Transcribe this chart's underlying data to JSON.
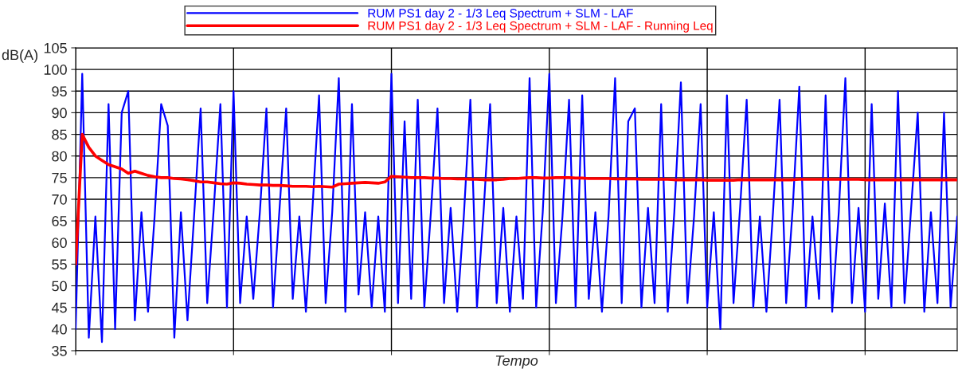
{
  "chart_data": {
    "type": "line",
    "xlabel": "Tempo",
    "ylabel": "dB(A)",
    "categories": [
      null,
      null,
      null,
      null,
      null,
      null,
      null,
      null,
      null,
      null,
      null,
      null,
      null,
      null,
      null,
      null,
      null,
      null,
      null,
      null,
      null,
      null,
      null,
      null,
      null,
      null,
      null,
      null,
      null,
      null,
      null,
      null,
      null,
      null,
      null,
      null,
      null,
      null,
      null,
      null,
      null,
      null,
      null,
      null,
      null,
      null,
      null,
      null,
      null,
      null,
      null,
      null,
      null,
      null,
      null,
      null,
      null,
      null,
      null,
      null,
      null,
      null,
      null,
      null,
      null,
      null,
      null,
      null,
      null,
      null,
      null,
      null,
      null,
      null,
      null,
      null,
      null,
      null,
      null,
      null,
      null,
      null,
      null,
      null,
      null,
      null,
      null,
      null,
      null,
      null,
      null,
      null,
      null,
      null,
      null,
      null,
      null,
      null,
      null,
      null,
      null,
      null,
      null,
      null,
      null,
      null,
      null,
      null,
      null,
      null,
      null,
      null,
      null,
      null,
      null,
      null,
      null,
      null,
      null,
      null,
      null,
      null,
      null,
      null,
      null,
      null,
      null,
      null,
      null,
      null,
      null,
      null,
      null,
      null,
      null
    ],
    "series": [
      {
        "name": "RUM PS1 day 2 - 1/3 Leq Spectrum + SLM - LAF",
        "color": "#0000ff",
        "values": [
          40,
          99,
          38,
          66,
          37,
          92,
          40,
          90,
          95,
          42,
          67,
          44,
          66,
          92,
          87,
          38,
          67,
          42,
          66,
          91,
          46,
          68,
          92,
          45,
          95,
          46,
          66,
          47,
          67,
          91,
          45,
          68,
          91,
          47,
          66,
          44,
          68,
          94,
          46,
          67,
          98,
          44,
          92,
          48,
          67,
          45,
          66,
          44,
          99,
          46,
          88,
          47,
          93,
          45,
          67,
          91,
          46,
          68,
          44,
          66,
          93,
          45,
          67,
          92,
          46,
          68,
          44,
          66,
          47,
          98,
          45,
          67,
          99,
          46,
          66,
          93,
          45,
          94,
          47,
          67,
          44,
          66,
          98,
          46,
          88,
          91,
          45,
          68,
          46,
          92,
          44,
          67,
          97,
          46,
          66,
          92,
          45,
          67,
          40,
          94,
          46,
          68,
          93,
          45,
          66,
          44,
          67,
          93,
          46,
          68,
          96,
          45,
          66,
          47,
          94,
          44,
          67,
          98,
          46,
          68,
          44,
          92,
          47,
          69,
          45,
          95,
          46,
          68,
          90,
          44,
          67,
          46,
          90,
          45,
          66
        ]
      },
      {
        "name": "RUM PS1 day 2 - 1/3 Leq Spectrum + SLM - LAF - Running Leq",
        "color": "#ff0000",
        "values": [
          55,
          85,
          82,
          80,
          79,
          78,
          77.5,
          77,
          76,
          76.5,
          76,
          75.5,
          75.2,
          75,
          75,
          74.8,
          74.7,
          74.5,
          74.3,
          74,
          74,
          73.8,
          73.6,
          73.5,
          73.8,
          73.7,
          73.5,
          73.4,
          73.3,
          73.3,
          73.2,
          73.2,
          73.1,
          73,
          73,
          73,
          72.9,
          73,
          72.9,
          72.8,
          73.5,
          73.6,
          73.7,
          73.8,
          73.9,
          73.8,
          73.7,
          74,
          75.3,
          75.2,
          75.1,
          75,
          75,
          75,
          74.9,
          74.9,
          74.8,
          74.8,
          74.7,
          74.7,
          74.6,
          74.6,
          74.5,
          74.5,
          74.5,
          74.6,
          74.8,
          74.8,
          74.9,
          75,
          75,
          74.9,
          74.9,
          75,
          75,
          75,
          74.9,
          74.9,
          74.8,
          74.8,
          74.8,
          74.8,
          74.7,
          74.7,
          74.7,
          74.7,
          74.6,
          74.6,
          74.6,
          74.6,
          74.6,
          74.5,
          74.5,
          74.5,
          74.5,
          74.5,
          74.4,
          74.4,
          74.4,
          74.4,
          74.4,
          74.5,
          74.5,
          74.5,
          74.5,
          74.5,
          74.5,
          74.5,
          74.5,
          74.5,
          74.6,
          74.6,
          74.6,
          74.6,
          74.6,
          74.6,
          74.6,
          74.6,
          74.6,
          74.6,
          74.5,
          74.5,
          74.5,
          74.5,
          74.5,
          74.5,
          74.5,
          74.5,
          74.5,
          74.5,
          74.5,
          74.5,
          74.5,
          74.5,
          74.5
        ]
      }
    ],
    "ylim": [
      35,
      105
    ],
    "yticks": [
      35,
      40,
      45,
      50,
      55,
      60,
      65,
      70,
      75,
      80,
      85,
      90,
      95,
      100,
      105
    ],
    "grid": true,
    "legend": "top",
    "tick_labels": "y",
    "marker": "none",
    "line_style": "solid"
  }
}
